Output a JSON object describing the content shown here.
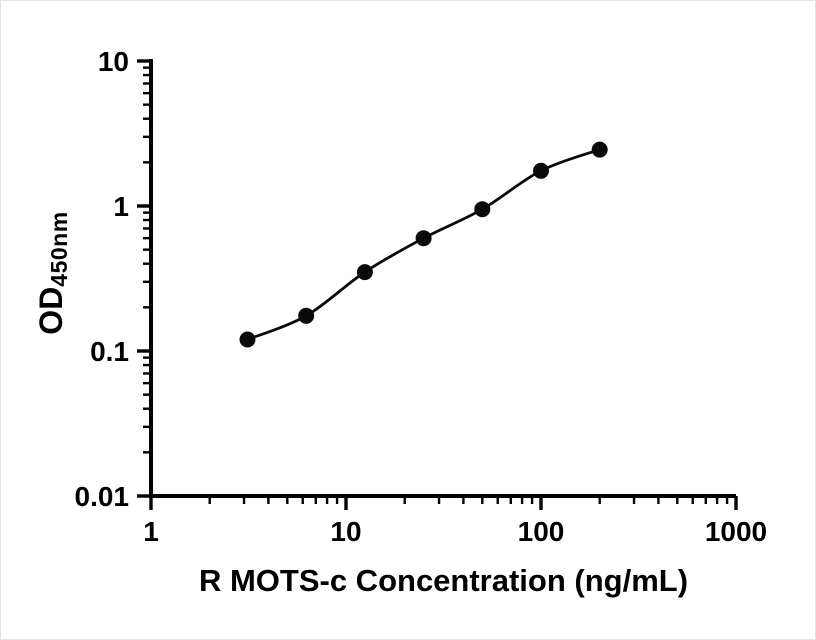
{
  "chart_data": {
    "type": "scatter",
    "title": "",
    "xlabel": "R MOTS-c Concentration (ng/mL)",
    "ylabel_main": "OD",
    "ylabel_sub": "450nm",
    "x_scale": "log",
    "y_scale": "log",
    "xlim": [
      1,
      1000
    ],
    "ylim": [
      0.01,
      10
    ],
    "x_ticks": [
      1,
      10,
      100,
      1000
    ],
    "x_tick_labels": [
      "1",
      "10",
      "100",
      "1000"
    ],
    "y_ticks": [
      0.01,
      0.1,
      1,
      10
    ],
    "y_tick_labels": [
      "0.01",
      "0.1",
      "1",
      "10"
    ],
    "grid": false,
    "legend": "none",
    "x": [
      3.125,
      6.25,
      12.5,
      25,
      50,
      100,
      200
    ],
    "y": [
      0.12,
      0.175,
      0.35,
      0.6,
      0.95,
      1.75,
      2.45
    ],
    "marker_color": "#0a0a0a",
    "line_color": "#0a0a0a",
    "axis_color": "#000000"
  }
}
